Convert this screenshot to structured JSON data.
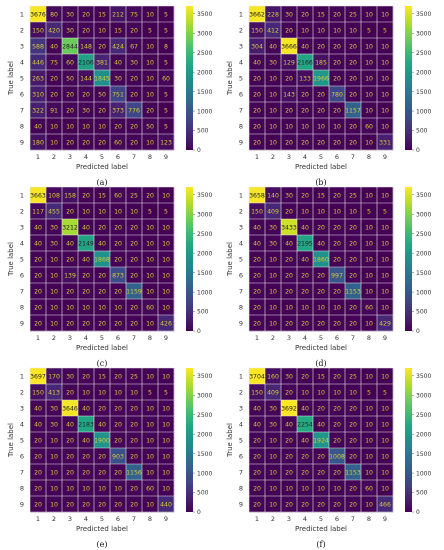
{
  "figure": {
    "panels": [
      "(a)",
      "(b)",
      "(c)",
      "(d)",
      "(e)",
      "(f)"
    ]
  },
  "chart_data": [
    {
      "type": "heatmap",
      "panel_label": "(a)",
      "xlabel": "Predicted label",
      "ylabel": "True label",
      "labels": [
        "1",
        "2",
        "3",
        "4",
        "5",
        "6",
        "7",
        "8",
        "9"
      ],
      "colorbar_ticks": [
        0,
        500,
        1000,
        1500,
        2000,
        2500,
        3000,
        3500
      ],
      "vmin": 0,
      "vmax": 3700,
      "values": [
        [
          3676,
          80,
          30,
          20,
          15,
          212,
          75,
          10,
          5
        ],
        [
          150,
          420,
          30,
          20,
          10,
          15,
          20,
          5,
          5
        ],
        [
          588,
          40,
          2844,
          148,
          20,
          424,
          67,
          10,
          8
        ],
        [
          446,
          75,
          60,
          2106,
          381,
          40,
          30,
          10,
          5
        ],
        [
          263,
          20,
          50,
          144,
          1845,
          30,
          20,
          10,
          60
        ],
        [
          310,
          20,
          20,
          20,
          50,
          751,
          20,
          10,
          5
        ],
        [
          322,
          91,
          20,
          30,
          20,
          373,
          776,
          20,
          5
        ],
        [
          40,
          10,
          10,
          10,
          10,
          20,
          20,
          50,
          5
        ],
        [
          180,
          10,
          20,
          20,
          20,
          60,
          20,
          10,
          123
        ]
      ]
    },
    {
      "type": "heatmap",
      "panel_label": "(b)",
      "xlabel": "Predicted label",
      "ylabel": "True label",
      "labels": [
        "1",
        "2",
        "3",
        "4",
        "5",
        "6",
        "7",
        "8",
        "9"
      ],
      "colorbar_ticks": [
        0,
        500,
        1000,
        1500,
        2000,
        2500,
        3000,
        3500
      ],
      "vmin": 0,
      "vmax": 3700,
      "values": [
        [
          3662,
          228,
          30,
          20,
          15,
          20,
          25,
          10,
          10
        ],
        [
          150,
          412,
          20,
          10,
          10,
          10,
          10,
          5,
          5
        ],
        [
          304,
          40,
          3666,
          40,
          20,
          20,
          20,
          10,
          10
        ],
        [
          40,
          30,
          129,
          2166,
          185,
          20,
          20,
          10,
          10
        ],
        [
          20,
          10,
          20,
          133,
          1966,
          20,
          20,
          10,
          10
        ],
        [
          20,
          10,
          143,
          20,
          20,
          780,
          20,
          10,
          10
        ],
        [
          20,
          10,
          20,
          20,
          20,
          20,
          1157,
          10,
          10
        ],
        [
          20,
          10,
          10,
          10,
          10,
          10,
          20,
          60,
          10
        ],
        [
          20,
          10,
          20,
          20,
          20,
          20,
          20,
          10,
          331
        ]
      ]
    },
    {
      "type": "heatmap",
      "panel_label": "(c)",
      "xlabel": "Predicted label",
      "ylabel": "True label",
      "labels": [
        "1",
        "2",
        "3",
        "4",
        "5",
        "6",
        "7",
        "8",
        "9"
      ],
      "colorbar_ticks": [
        0,
        500,
        1000,
        1500,
        2000,
        2500,
        3000,
        3500
      ],
      "vmin": 0,
      "vmax": 3700,
      "values": [
        [
          3663,
          108,
          158,
          20,
          15,
          60,
          25,
          20,
          10
        ],
        [
          117,
          455,
          20,
          10,
          10,
          10,
          10,
          5,
          5
        ],
        [
          40,
          30,
          3212,
          40,
          20,
          20,
          20,
          10,
          10
        ],
        [
          40,
          30,
          40,
          2149,
          40,
          20,
          20,
          10,
          10
        ],
        [
          20,
          10,
          20,
          40,
          1868,
          20,
          20,
          10,
          10
        ],
        [
          20,
          10,
          139,
          20,
          20,
          873,
          20,
          10,
          10
        ],
        [
          20,
          10,
          20,
          20,
          20,
          20,
          1159,
          10,
          10
        ],
        [
          20,
          10,
          10,
          10,
          10,
          10,
          20,
          60,
          10
        ],
        [
          20,
          10,
          20,
          20,
          20,
          20,
          20,
          10,
          426
        ]
      ]
    },
    {
      "type": "heatmap",
      "panel_label": "(d)",
      "xlabel": "Predicted label",
      "ylabel": "True label",
      "labels": [
        "1",
        "2",
        "3",
        "4",
        "5",
        "6",
        "7",
        "8",
        "9"
      ],
      "colorbar_ticks": [
        0,
        500,
        1000,
        1500,
        2000,
        2500,
        3000,
        3500
      ],
      "vmin": 0,
      "vmax": 3700,
      "values": [
        [
          3658,
          140,
          30,
          20,
          15,
          20,
          25,
          10,
          10
        ],
        [
          150,
          409,
          20,
          10,
          10,
          10,
          10,
          5,
          5
        ],
        [
          40,
          30,
          3433,
          40,
          20,
          20,
          20,
          10,
          10
        ],
        [
          40,
          30,
          40,
          2195,
          40,
          20,
          20,
          10,
          10
        ],
        [
          20,
          10,
          20,
          40,
          1860,
          20,
          20,
          10,
          10
        ],
        [
          20,
          10,
          20,
          20,
          20,
          997,
          20,
          10,
          10
        ],
        [
          20,
          10,
          20,
          20,
          20,
          20,
          1153,
          10,
          10
        ],
        [
          20,
          10,
          10,
          10,
          10,
          10,
          20,
          60,
          10
        ],
        [
          20,
          10,
          20,
          20,
          20,
          20,
          20,
          10,
          429
        ]
      ]
    },
    {
      "type": "heatmap",
      "panel_label": "(e)",
      "xlabel": "Predicted label",
      "ylabel": "True label",
      "labels": [
        "1",
        "2",
        "3",
        "4",
        "5",
        "6",
        "7",
        "8",
        "9"
      ],
      "colorbar_ticks": [
        0,
        500,
        1000,
        1500,
        2000,
        2500,
        3000,
        3500
      ],
      "vmin": 0,
      "vmax": 3700,
      "values": [
        [
          3697,
          170,
          30,
          20,
          15,
          20,
          25,
          10,
          10
        ],
        [
          150,
          413,
          20,
          10,
          10,
          10,
          10,
          5,
          5
        ],
        [
          40,
          30,
          3646,
          40,
          20,
          20,
          20,
          10,
          10
        ],
        [
          40,
          30,
          40,
          2183,
          40,
          20,
          20,
          10,
          10
        ],
        [
          20,
          10,
          20,
          40,
          1900,
          20,
          20,
          10,
          10
        ],
        [
          20,
          10,
          20,
          20,
          20,
          903,
          20,
          10,
          10
        ],
        [
          20,
          10,
          20,
          20,
          20,
          20,
          1156,
          10,
          10
        ],
        [
          20,
          10,
          10,
          10,
          10,
          10,
          20,
          60,
          10
        ],
        [
          20,
          10,
          20,
          20,
          20,
          20,
          20,
          10,
          440
        ]
      ]
    },
    {
      "type": "heatmap",
      "panel_label": "(f)",
      "xlabel": "Predicted label",
      "ylabel": "True label",
      "labels": [
        "1",
        "2",
        "3",
        "4",
        "5",
        "6",
        "7",
        "8",
        "9"
      ],
      "colorbar_ticks": [
        0,
        500,
        1000,
        1500,
        2000,
        2500,
        3000,
        3500
      ],
      "vmin": 0,
      "vmax": 3700,
      "values": [
        [
          3704,
          160,
          30,
          20,
          15,
          20,
          25,
          10,
          10
        ],
        [
          150,
          409,
          20,
          10,
          10,
          10,
          10,
          5,
          5
        ],
        [
          40,
          30,
          3692,
          40,
          20,
          20,
          20,
          10,
          10
        ],
        [
          40,
          30,
          40,
          2254,
          40,
          20,
          20,
          10,
          10
        ],
        [
          20,
          10,
          20,
          40,
          1924,
          20,
          20,
          10,
          10
        ],
        [
          20,
          10,
          20,
          20,
          20,
          1008,
          20,
          10,
          10
        ],
        [
          20,
          10,
          20,
          20,
          20,
          20,
          1153,
          10,
          10
        ],
        [
          20,
          10,
          10,
          10,
          10,
          10,
          20,
          60,
          10
        ],
        [
          20,
          10,
          20,
          20,
          20,
          20,
          20,
          10,
          466
        ]
      ]
    }
  ]
}
